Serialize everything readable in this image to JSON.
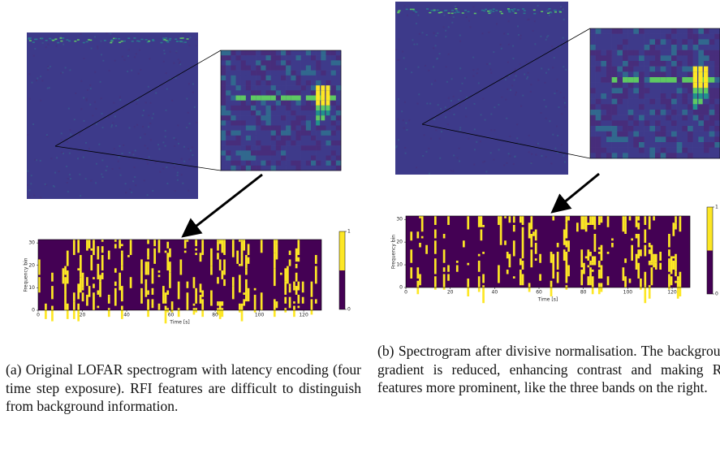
{
  "panels": [
    {
      "plot": {
        "ylabel": "Frequency bin",
        "xlabel": "Time [s]",
        "xticks": [
          0,
          20,
          40,
          60,
          80,
          100,
          120
        ],
        "yticks": [
          0,
          10,
          20,
          30
        ],
        "colorbar_ticks": [
          0,
          1
        ]
      },
      "caption": "(a) Original LOFAR spectrogram with latency encoding (four time step exposure). RFI features are difficult to distinguish from background information."
    },
    {
      "plot": {
        "ylabel": "Frequency bin",
        "xlabel": "Time [s]",
        "xticks": [
          0,
          20,
          40,
          60,
          80,
          100,
          120
        ],
        "yticks": [
          0,
          10,
          20,
          30
        ],
        "colorbar_ticks": [
          0,
          1
        ]
      },
      "caption": "(b) Spectrogram after divisive normalisation. The background gradient is reduced, enhancing contrast and making RFI features more prominent, like the three bands on the right."
    }
  ]
}
